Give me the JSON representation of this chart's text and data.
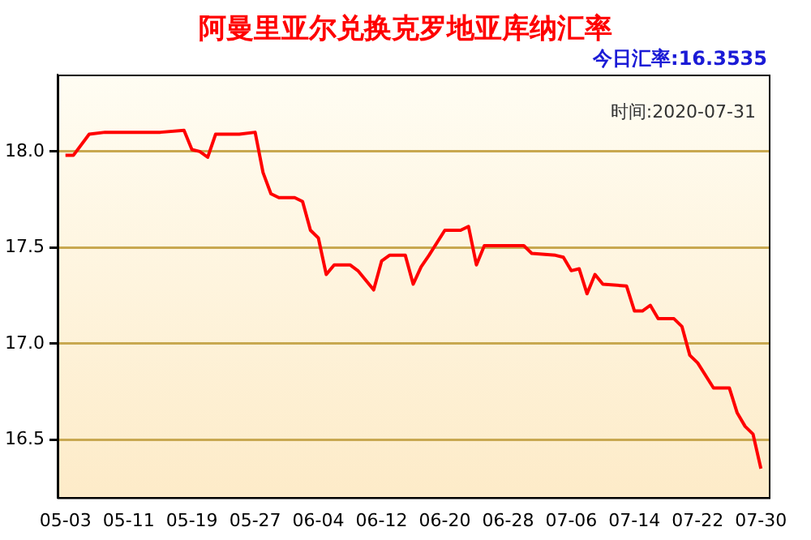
{
  "chart_data": {
    "type": "line",
    "title": "阿曼里亚尔兑换克罗地亚库纳汇率",
    "subtitle": "今日汇率:16.3535",
    "annotations": [
      "时间:2020-07-31"
    ],
    "x": [
      "2020-05-03",
      "2020-05-04",
      "2020-05-06",
      "2020-05-08",
      "2020-05-11",
      "2020-05-13",
      "2020-05-15",
      "2020-05-18",
      "2020-05-19",
      "2020-05-20",
      "2020-05-21",
      "2020-05-22",
      "2020-05-25",
      "2020-05-27",
      "2020-05-28",
      "2020-05-29",
      "2020-05-30",
      "2020-06-01",
      "2020-06-02",
      "2020-06-03",
      "2020-06-04",
      "2020-06-05",
      "2020-06-06",
      "2020-06-08",
      "2020-06-09",
      "2020-06-11",
      "2020-06-12",
      "2020-06-13",
      "2020-06-15",
      "2020-06-16",
      "2020-06-17",
      "2020-06-18",
      "2020-06-20",
      "2020-06-22",
      "2020-06-23",
      "2020-06-24",
      "2020-06-25",
      "2020-06-28",
      "2020-06-30",
      "2020-07-01",
      "2020-07-04",
      "2020-07-05",
      "2020-07-06",
      "2020-07-07",
      "2020-07-08",
      "2020-07-09",
      "2020-07-10",
      "2020-07-13",
      "2020-07-14",
      "2020-07-15",
      "2020-07-16",
      "2020-07-17",
      "2020-07-19",
      "2020-07-20",
      "2020-07-21",
      "2020-07-22",
      "2020-07-24",
      "2020-07-26",
      "2020-07-27",
      "2020-07-28",
      "2020-07-29",
      "2020-07-30"
    ],
    "series": [
      {
        "color": "#ff0000",
        "values": [
          17.98,
          17.98,
          18.09,
          18.1,
          18.1,
          18.1,
          18.1,
          18.11,
          18.01,
          18.0,
          17.97,
          18.09,
          18.09,
          18.1,
          17.89,
          17.78,
          17.76,
          17.76,
          17.74,
          17.59,
          17.55,
          17.36,
          17.41,
          17.41,
          17.38,
          17.28,
          17.43,
          17.46,
          17.46,
          17.31,
          17.4,
          17.46,
          17.59,
          17.59,
          17.61,
          17.41,
          17.51,
          17.51,
          17.51,
          17.47,
          17.46,
          17.45,
          17.38,
          17.39,
          17.26,
          17.36,
          17.31,
          17.3,
          17.17,
          17.17,
          17.2,
          17.13,
          17.13,
          17.09,
          16.94,
          16.9,
          16.77,
          16.77,
          16.64,
          16.57,
          16.53,
          16.35
        ]
      }
    ],
    "xlim": [
      "2020-05-02",
      "2020-07-31"
    ],
    "xticks": [
      {
        "value": "2020-05-03",
        "label": "05-03"
      },
      {
        "value": "2020-05-11",
        "label": "05-11"
      },
      {
        "value": "2020-05-19",
        "label": "05-19"
      },
      {
        "value": "2020-05-27",
        "label": "05-27"
      },
      {
        "value": "2020-06-04",
        "label": "06-04"
      },
      {
        "value": "2020-06-12",
        "label": "06-12"
      },
      {
        "value": "2020-06-20",
        "label": "06-20"
      },
      {
        "value": "2020-06-28",
        "label": "06-28"
      },
      {
        "value": "2020-07-06",
        "label": "07-06"
      },
      {
        "value": "2020-07-14",
        "label": "07-14"
      },
      {
        "value": "2020-07-22",
        "label": "07-22"
      },
      {
        "value": "2020-07-30",
        "label": "07-30"
      }
    ],
    "ylim": [
      16.2,
      18.4
    ],
    "yticks": [
      {
        "value": 16.5,
        "label": "16.5"
      },
      {
        "value": 17,
        "label": "17.0"
      },
      {
        "value": 17.5,
        "label": "17.5"
      },
      {
        "value": 18,
        "label": "18.0"
      }
    ],
    "grid": "y",
    "legend": false,
    "marker": "none",
    "line_style": "solid"
  }
}
